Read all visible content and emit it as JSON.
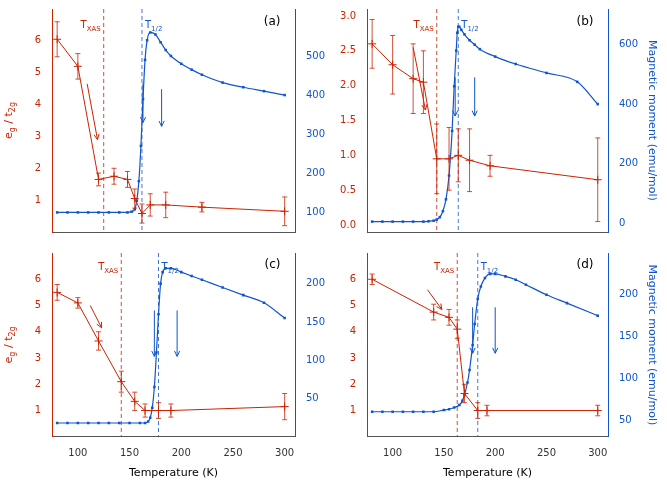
{
  "chart_data": [
    {
      "type": "line",
      "title": "(a)",
      "ylabel": [
        {
          "text": "e"
        },
        {
          "text": "g",
          "sub": true
        },
        {
          "text": " / t"
        },
        {
          "text": "2g",
          "sub": true
        }
      ],
      "xlim": [
        75,
        310
      ],
      "xticks": [
        100,
        150,
        200,
        250,
        300
      ],
      "ylim": [
        0,
        7
      ],
      "yticks": [
        1,
        2,
        3,
        4,
        5,
        6
      ],
      "y2lim": [
        50,
        620
      ],
      "y2ticks": [
        100,
        200,
        300,
        400,
        500
      ],
      "grid": false,
      "tick_labels": "y",
      "series": [
        {
          "color": "#cc2200",
          "axis": "y",
          "marker": "plus",
          "line_style": "solid",
          "x": [
            80,
            100,
            120,
            135,
            148,
            155,
            162,
            170,
            185,
            220,
            300
          ],
          "values": [
            6.05,
            5.2,
            1.65,
            1.75,
            1.65,
            1.05,
            0.58,
            0.85,
            0.85,
            0.78,
            0.65
          ],
          "errors": [
            0.55,
            0.4,
            0.2,
            0.25,
            0.25,
            0.3,
            0.3,
            0.35,
            0.4,
            0.15,
            0.45
          ]
        },
        {
          "color": "#1155cc",
          "axis": "y2",
          "marker": "square",
          "line_style": "spline",
          "x": [
            80,
            90,
            100,
            110,
            120,
            130,
            140,
            148,
            152,
            155,
            157,
            159,
            161,
            163,
            165,
            167,
            170,
            175,
            180,
            185,
            190,
            200,
            210,
            220,
            240,
            260,
            280,
            300
          ],
          "values": [
            100,
            100,
            100,
            100,
            100,
            100,
            100,
            100,
            102,
            108,
            130,
            180,
            270,
            390,
            490,
            540,
            560,
            555,
            535,
            515,
            500,
            480,
            465,
            452,
            432,
            420,
            410,
            400
          ]
        }
      ],
      "vlines": [
        {
          "x": 125,
          "color": "#cc2200",
          "label": [
            {
              "text": "T"
            },
            {
              "text": "XAS",
              "sub": true
            }
          ]
        },
        {
          "x": 162,
          "color": "#1155cc",
          "label": [
            {
              "text": "T"
            },
            {
              "text": "1/2",
              "sub": true
            }
          ]
        }
      ],
      "arrows": [
        {
          "axis": "y2",
          "color": "#1155cc",
          "x1": 163,
          "y1": 430,
          "x2": 163,
          "y2": 330
        },
        {
          "axis": "y2",
          "color": "#1155cc",
          "x1": 181,
          "y1": 415,
          "x2": 181,
          "y2": 320
        },
        {
          "axis": "y",
          "color": "#cc2200",
          "x1": 109,
          "y1": 4.65,
          "x2": 119,
          "y2": 2.9
        }
      ]
    },
    {
      "type": "line",
      "title": "(b)",
      "y2label": "Magnetic moment (emu/mol)",
      "xlim": [
        75,
        310
      ],
      "xticks": [
        100,
        150,
        200,
        250,
        300
      ],
      "ylim": [
        -0.1,
        3.1
      ],
      "yticks": [
        {
          "value": 0,
          "label": "0.0"
        },
        0.5,
        {
          "value": 1,
          "label": "1.0"
        },
        1.5,
        {
          "value": 2,
          "label": "2.0"
        },
        2.5,
        {
          "value": 3,
          "label": "3.0"
        }
      ],
      "y2lim": [
        -30,
        720
      ],
      "y2ticks": [
        0,
        200,
        400,
        600
      ],
      "grid": false,
      "tick_labels": "y",
      "series": [
        {
          "color": "#cc2200",
          "axis": "y",
          "marker": "plus",
          "line_style": "solid",
          "x": [
            80,
            100,
            120,
            130,
            143,
            155,
            164,
            175,
            195,
            300
          ],
          "values": [
            2.6,
            2.3,
            2.1,
            2.05,
            0.95,
            0.95,
            1.0,
            0.93,
            0.85,
            0.65
          ],
          "errors": [
            0.35,
            0.42,
            0.5,
            0.45,
            0.5,
            0.45,
            0.38,
            0.45,
            0.15,
            0.6
          ]
        },
        {
          "color": "#1155cc",
          "axis": "y2",
          "marker": "square",
          "line_style": "spline",
          "x": [
            80,
            90,
            100,
            110,
            120,
            130,
            135,
            140,
            143,
            146,
            149,
            152,
            155,
            158,
            160,
            162,
            163,
            164,
            165,
            167,
            170,
            175,
            180,
            185,
            200,
            220,
            250,
            280,
            300
          ],
          "values": [
            5,
            5,
            5,
            5,
            5,
            5,
            6,
            8,
            12,
            20,
            40,
            80,
            160,
            310,
            460,
            580,
            640,
            660,
            660,
            650,
            635,
            615,
            600,
            585,
            560,
            535,
            505,
            475,
            400
          ]
        }
      ],
      "vlines": [
        {
          "x": 143,
          "color": "#cc2200",
          "label": [
            {
              "text": "T"
            },
            {
              "text": "XAS",
              "sub": true
            }
          ]
        },
        {
          "x": 164,
          "color": "#1155cc",
          "label": [
            {
              "text": "T"
            },
            {
              "text": "1/2",
              "sub": true
            }
          ]
        }
      ],
      "arrows": [
        {
          "axis": "y2",
          "color": "#1155cc",
          "x1": 161,
          "y1": 490,
          "x2": 161,
          "y2": 360
        },
        {
          "axis": "y2",
          "color": "#1155cc",
          "x1": 180,
          "y1": 490,
          "x2": 180,
          "y2": 360
        },
        {
          "axis": "y",
          "color": "#cc2200",
          "x1": 120,
          "y1": 2.55,
          "x2": 132,
          "y2": 1.65
        }
      ]
    },
    {
      "type": "line",
      "title": "(c)",
      "ylabel": [
        {
          "text": "e"
        },
        {
          "text": "g",
          "sub": true
        },
        {
          "text": " / t"
        },
        {
          "text": "2g",
          "sub": true
        }
      ],
      "xlabel": "Temperature (K)",
      "xlim": [
        75,
        310
      ],
      "xticks": [
        100,
        150,
        200,
        250,
        300
      ],
      "ylim": [
        0,
        7
      ],
      "yticks": [
        1,
        2,
        3,
        4,
        5,
        6
      ],
      "y2lim": [
        0,
        240
      ],
      "y2ticks": [
        50,
        100,
        150,
        200
      ],
      "grid": false,
      "series": [
        {
          "color": "#cc2200",
          "axis": "y",
          "marker": "plus",
          "line_style": "solid",
          "x": [
            80,
            100,
            120,
            142,
            155,
            165,
            178,
            190,
            300
          ],
          "values": [
            5.5,
            5.1,
            3.65,
            2.1,
            1.35,
            1.0,
            1.0,
            1.0,
            1.15
          ],
          "errors": [
            0.3,
            0.2,
            0.35,
            0.4,
            0.35,
            0.25,
            0.3,
            0.25,
            0.5
          ]
        },
        {
          "color": "#1155cc",
          "axis": "y2",
          "marker": "square",
          "line_style": "spline",
          "x": [
            80,
            90,
            100,
            110,
            120,
            130,
            140,
            150,
            160,
            165,
            168,
            170,
            172,
            174,
            176,
            178,
            180,
            182,
            185,
            190,
            200,
            210,
            220,
            240,
            260,
            280,
            300
          ],
          "values": [
            18,
            18,
            18,
            18,
            18,
            18,
            18,
            18,
            18,
            18,
            20,
            25,
            38,
            65,
            110,
            160,
            200,
            215,
            220,
            220,
            215,
            210,
            205,
            195,
            185,
            175,
            155
          ]
        }
      ],
      "vlines": [
        {
          "x": 142,
          "color": "#cc2200",
          "label": [
            {
              "text": "T"
            },
            {
              "text": "XAS",
              "sub": true
            }
          ]
        },
        {
          "x": 178,
          "color": "#1155cc",
          "label": [
            {
              "text": "T"
            },
            {
              "text": "1/2",
              "sub": true
            }
          ]
        }
      ],
      "arrows": [
        {
          "axis": "y2",
          "color": "#1155cc",
          "x1": 174,
          "y1": 165,
          "x2": 174,
          "y2": 105
        },
        {
          "axis": "y2",
          "color": "#1155cc",
          "x1": 196,
          "y1": 165,
          "x2": 196,
          "y2": 105
        },
        {
          "axis": "y",
          "color": "#cc2200",
          "x1": 112,
          "y1": 5.0,
          "x2": 123,
          "y2": 4.15
        }
      ]
    },
    {
      "type": "line",
      "title": "(d)",
      "y2label": "Magnetic moment (emu/mol)",
      "xlabel": "Temperature (K)",
      "xlim": [
        75,
        310
      ],
      "xticks": [
        100,
        150,
        200,
        250,
        300
      ],
      "ylim": [
        0,
        7
      ],
      "yticks": [
        1,
        2,
        3,
        4,
        5,
        6
      ],
      "y2lim": [
        30,
        250
      ],
      "y2ticks": [
        50,
        100,
        150,
        200
      ],
      "grid": false,
      "series": [
        {
          "color": "#cc2200",
          "axis": "y",
          "marker": "plus",
          "line_style": "solid",
          "x": [
            80,
            140,
            155,
            163,
            170,
            183,
            192,
            300
          ],
          "values": [
            6.0,
            4.75,
            4.55,
            4.1,
            1.65,
            1.0,
            1.0,
            1.0
          ],
          "errors": [
            0.2,
            0.3,
            0.3,
            0.35,
            0.35,
            0.3,
            0.2,
            0.2
          ]
        },
        {
          "color": "#1155cc",
          "axis": "y2",
          "marker": "square",
          "line_style": "spline",
          "x": [
            80,
            90,
            100,
            110,
            120,
            130,
            140,
            150,
            155,
            160,
            165,
            168,
            170,
            173,
            175,
            178,
            180,
            183,
            186,
            190,
            195,
            200,
            210,
            220,
            230,
            250,
            270,
            300
          ],
          "values": [
            60,
            60,
            60,
            60,
            60,
            60,
            60,
            62,
            63,
            65,
            68,
            73,
            80,
            95,
            110,
            140,
            165,
            195,
            210,
            220,
            225,
            225,
            222,
            218,
            212,
            200,
            190,
            175
          ]
        }
      ],
      "vlines": [
        {
          "x": 163,
          "color": "#cc2200",
          "label": [
            {
              "text": "T"
            },
            {
              "text": "XAS",
              "sub": true
            }
          ]
        },
        {
          "x": 183,
          "color": "#1155cc",
          "label": [
            {
              "text": "T"
            },
            {
              "text": "1/2",
              "sub": true
            }
          ]
        }
      ],
      "arrows": [
        {
          "axis": "y2",
          "color": "#1155cc",
          "x1": 178,
          "y1": 185,
          "x2": 178,
          "y2": 130
        },
        {
          "axis": "y2",
          "color": "#1155cc",
          "x1": 200,
          "y1": 185,
          "x2": 200,
          "y2": 130
        },
        {
          "axis": "y",
          "color": "#cc2200",
          "x1": 134,
          "y1": 5.6,
          "x2": 148,
          "y2": 4.85
        }
      ]
    }
  ]
}
